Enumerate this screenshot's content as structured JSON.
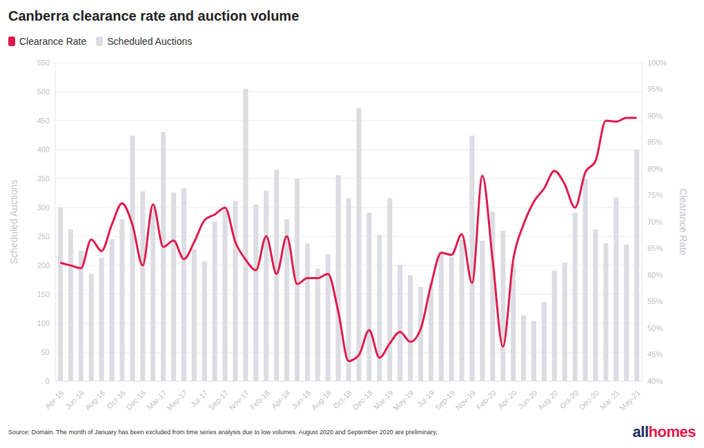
{
  "chart_data": {
    "type": "bar",
    "title": "Canberra clearance rate and auction volume",
    "categories": [
      "Apr-16",
      null,
      "Jun-16",
      null,
      "Aug-16",
      null,
      "Oct-16",
      null,
      "Dec-16",
      null,
      "Mar-17",
      null,
      "May-17",
      null,
      "Jul-17",
      null,
      "Sep-17",
      null,
      "Nov-17",
      null,
      "Feb-18",
      null,
      "Apr-18",
      null,
      "Jun-18",
      null,
      "Aug-18",
      null,
      "Oct-18",
      null,
      "Dec-18",
      null,
      "Mar-19",
      null,
      "May-19",
      null,
      "Jul-19",
      null,
      "Sep-19",
      null,
      "Nov-19",
      null,
      "Feb-20",
      null,
      "Apr-20",
      null,
      "Jun-20",
      null,
      "Aug-20",
      null,
      "Oct-20",
      null,
      "Dec-20",
      null,
      "Mar-21",
      null,
      "May-21"
    ],
    "series": [
      {
        "name": "Clearance Rate",
        "type": "line",
        "axis": "y2",
        "color": "#e0194b",
        "values": [
          62.3,
          61.8,
          61.3,
          66.7,
          64.5,
          69.5,
          73.5,
          69.5,
          61.8,
          73.3,
          65.3,
          66.5,
          63,
          66.2,
          70.3,
          71.4,
          72.7,
          66.2,
          62.9,
          60.9,
          67.3,
          60.2,
          67.3,
          58.3,
          59.4,
          59.4,
          60.2,
          53.1,
          43.8,
          44.9,
          49.6,
          44.4,
          47.1,
          49.3,
          47.4,
          49.8,
          58,
          64.2,
          63.8,
          67.7,
          58.5,
          78.7,
          62.9,
          46.5,
          62.9,
          69.5,
          73.8,
          76.3,
          79.6,
          77.1,
          72.7,
          79.3,
          81.5,
          89.1,
          88.9,
          89.6,
          89.6
        ]
      },
      {
        "name": "Scheduled Auctions",
        "type": "bar",
        "color": "#dcdde3",
        "values": [
          300,
          262,
          225,
          185,
          213,
          245,
          280,
          424,
          328,
          300,
          430,
          326,
          333,
          228,
          207,
          275,
          300,
          311,
          505,
          305,
          329,
          365,
          280,
          350,
          238,
          194,
          220,
          356,
          316,
          472,
          291,
          252,
          316,
          201,
          183,
          163,
          170,
          225,
          215,
          244,
          424,
          243,
          293,
          260,
          203,
          114,
          104,
          137,
          191,
          205,
          291,
          349,
          262,
          238,
          317,
          236,
          400
        ]
      }
    ],
    "ylabel": "Scheduled Auctions",
    "y2label": "Clearance Rate",
    "ylim": [
      0,
      550
    ],
    "yticks": [
      0,
      50,
      100,
      150,
      200,
      250,
      300,
      350,
      400,
      450,
      500,
      550
    ],
    "y2lim": [
      40,
      100
    ],
    "y2ticks": [
      {
        "value": 40,
        "label": "40%"
      },
      {
        "value": 45,
        "label": "45%"
      },
      {
        "value": 50,
        "label": "50%"
      },
      {
        "value": 55,
        "label": "55%"
      },
      {
        "value": 60,
        "label": "60%"
      },
      {
        "value": 65,
        "label": "65%"
      },
      {
        "value": 70,
        "label": "70%"
      },
      {
        "value": 75,
        "label": "75%"
      },
      {
        "value": 80,
        "label": "80%"
      },
      {
        "value": 85,
        "label": "85%"
      },
      {
        "value": 90,
        "label": "90%"
      },
      {
        "value": 95,
        "label": "95%"
      },
      {
        "value": 100,
        "label": "100%"
      }
    ],
    "grid": true,
    "legend": "top-left",
    "annotations": {
      "source": "Source: Domain. The month of January has been excluded from time series analysis due to low volumes. August 2020 and September 2020 are preliminary.",
      "logo": "allhomes"
    }
  }
}
